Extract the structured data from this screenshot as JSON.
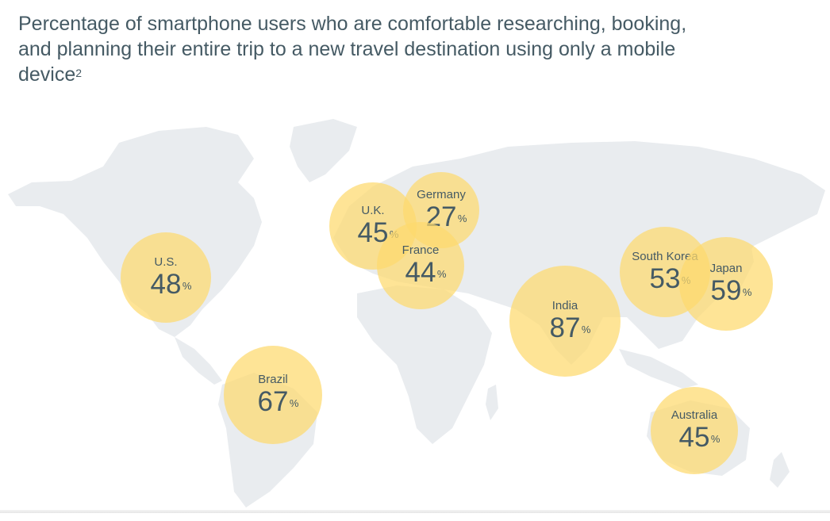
{
  "header": {
    "title": "Percentage of smartphone users who are comfortable researching, booking, and planning their entire trip to a new travel destination using only a mobile device",
    "footnote": "2"
  },
  "map": {
    "land_color": "#e9ecef",
    "bubble_color": "#fdda6e",
    "text_color": "#455a64",
    "percent_symbol": "%"
  },
  "chart_data": {
    "type": "bubble-map",
    "title": "Percentage of smartphone users who are comfortable researching, booking, and planning their entire trip to a new travel destination using only a mobile device",
    "unit": "%",
    "regions": [
      {
        "country": "U.S.",
        "value": 48
      },
      {
        "country": "Brazil",
        "value": 67
      },
      {
        "country": "U.K.",
        "value": 45
      },
      {
        "country": "Germany",
        "value": 27
      },
      {
        "country": "France",
        "value": 44
      },
      {
        "country": "India",
        "value": 87
      },
      {
        "country": "South Korea",
        "value": 53
      },
      {
        "country": "Japan",
        "value": 59
      },
      {
        "country": "Australia",
        "value": 45
      }
    ]
  }
}
